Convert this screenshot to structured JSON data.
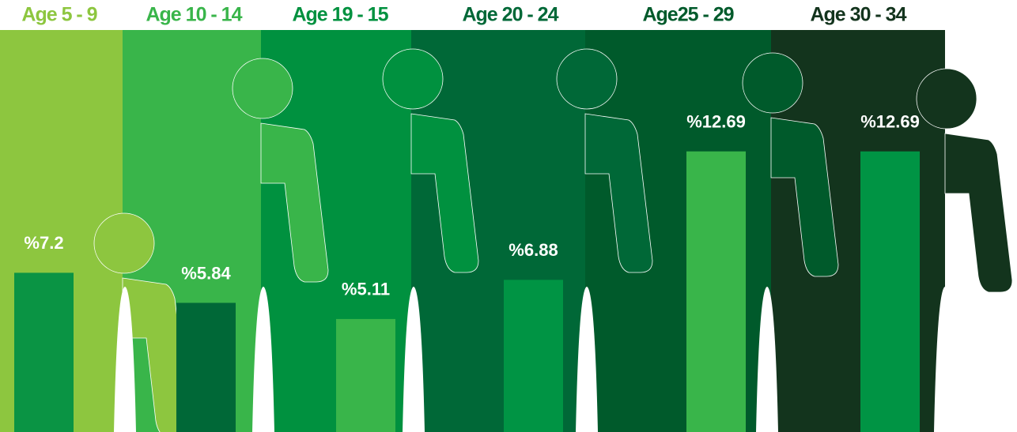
{
  "chart_data": {
    "type": "bar",
    "categories": [
      "Age 5 - 9",
      "Age 10 - 14",
      "Age 19 - 15",
      "Age 20 - 24",
      "Age25 - 29",
      "Age 30 - 34"
    ],
    "values": [
      7.2,
      5.84,
      5.11,
      6.88,
      12.69,
      12.69
    ],
    "value_labels": [
      "%7.2",
      "%5.84",
      "%5.11",
      "%6.88",
      "%12.69",
      "%12.69"
    ],
    "colors": [
      "#0a9444",
      "#006837",
      "#39b54a",
      "#009444",
      "#39b54a",
      "#009444"
    ]
  }
}
